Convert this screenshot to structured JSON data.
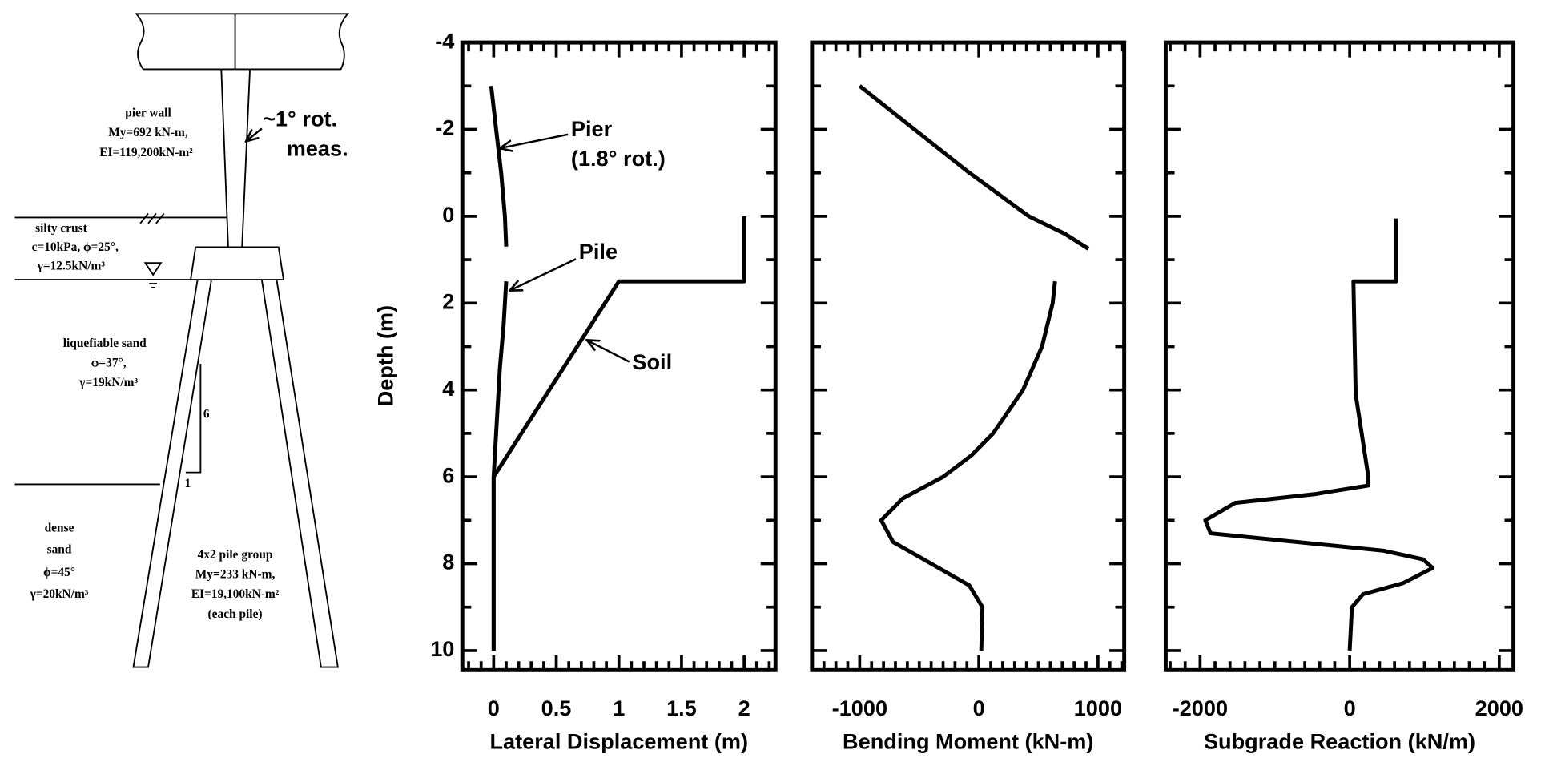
{
  "diagram": {
    "pier_wall": [
      "pier wall",
      "My=692 kN-m,",
      "EI=119,200kN-m²"
    ],
    "rotation_note": [
      "~1° rot.",
      "meas."
    ],
    "silty_crust": [
      "silty crust",
      "c=10kPa, ϕ=25°,",
      "γ=12.5kN/m³"
    ],
    "liquefiable_sand": [
      "liquefiable sand",
      "ϕ=37°,",
      "γ=19kN/m³"
    ],
    "slope": [
      "6",
      "1"
    ],
    "dense_sand": [
      "dense",
      "sand",
      "ϕ=45°",
      "γ=20kN/m³"
    ],
    "pile_group": [
      "4x2 pile group",
      "My=233 kN-m,",
      "EI=19,100kN-m²",
      "(each pile)"
    ]
  },
  "chart_data": [
    {
      "type": "line",
      "xlabel": "Lateral Displacement (m)",
      "ylabel": "Depth (m)",
      "ytick_labels": true,
      "y_inverted": true,
      "xlim": [
        -0.25,
        2.25
      ],
      "xticks": [
        0,
        0.5,
        1,
        1.5,
        2
      ],
      "xminor": [
        -0.2,
        -0.1,
        0.1,
        0.2,
        0.3,
        0.4,
        0.6,
        0.7,
        0.8,
        0.9,
        1.1,
        1.2,
        1.3,
        1.4,
        1.6,
        1.7,
        1.8,
        1.9,
        2.1,
        2.2
      ],
      "ylim": [
        -4,
        10.45
      ],
      "yticks": [
        -4,
        -2,
        0,
        2,
        4,
        6,
        8,
        10
      ],
      "yminor": [
        -3,
        -1,
        1,
        3,
        5,
        7,
        9
      ],
      "series": [
        {
          "name": "Pier",
          "note": "(1.8° rot.)",
          "color": "#000000",
          "depth": [
            -3,
            -2,
            -1,
            0,
            0.7
          ],
          "values": [
            -0.02,
            0.02,
            0.06,
            0.09,
            0.1
          ]
        },
        {
          "name": "Pile",
          "color": "#000000",
          "depth": [
            1.5,
            2.5,
            3.5,
            5,
            6,
            8,
            10
          ],
          "values": [
            0.1,
            0.08,
            0.05,
            0.02,
            0,
            0,
            0
          ]
        },
        {
          "name": "Soil",
          "color": "#000000",
          "depth": [
            0,
            1.5,
            1.5,
            6,
            10
          ],
          "values": [
            2,
            2,
            1,
            0,
            0
          ]
        }
      ]
    },
    {
      "type": "line",
      "xlabel": "Bending Moment (kN-m)",
      "ytick_labels": false,
      "y_inverted": true,
      "xlim": [
        -1400,
        1220
      ],
      "xticks": [
        -1000,
        0,
        1000
      ],
      "xminor": [
        -1300,
        -1200,
        -1100,
        -900,
        -800,
        -700,
        -600,
        -500,
        -400,
        -300,
        -200,
        -100,
        100,
        200,
        300,
        400,
        500,
        600,
        700,
        800,
        900,
        1100,
        1200
      ],
      "ylim": [
        -4,
        10.45
      ],
      "yticks": [
        -4,
        -2,
        0,
        2,
        4,
        6,
        8,
        10
      ],
      "yminor": [
        -3,
        -1,
        1,
        3,
        5,
        7,
        9
      ],
      "series": [
        {
          "color": "#000000",
          "depth": [
            -3,
            -2,
            -1,
            0,
            0.4,
            0.75
          ],
          "values": [
            -1000,
            -540,
            -80,
            420,
            720,
            920
          ]
        },
        {
          "color": "#000000",
          "depth": [
            1.5,
            2,
            3,
            4,
            5,
            5.5,
            6,
            6.5,
            7,
            7.5,
            8,
            8.5,
            9,
            10
          ],
          "values": [
            640,
            620,
            530,
            370,
            120,
            -60,
            -300,
            -640,
            -820,
            -720,
            -400,
            -80,
            30,
            20
          ]
        }
      ]
    },
    {
      "type": "line",
      "xlabel": "Subgrade Reaction (kN/m)",
      "ytick_labels": false,
      "y_inverted": true,
      "xlim": [
        -2460,
        2190
      ],
      "xticks": [
        -2000,
        0,
        2000
      ],
      "xminor": [
        -2400,
        -2200,
        -1800,
        -1600,
        -1400,
        -1200,
        -1000,
        -800,
        -600,
        -400,
        -200,
        200,
        400,
        600,
        800,
        1000,
        1200,
        1400,
        1600,
        1800
      ],
      "ylim": [
        -4,
        10.45
      ],
      "yticks": [
        -4,
        -2,
        0,
        2,
        4,
        6,
        8,
        10
      ],
      "yminor": [
        -3,
        -1,
        1,
        3,
        5,
        7,
        9
      ],
      "series": [
        {
          "color": "#000000",
          "depth": [
            0.05,
            1.5,
            1.5,
            4.1,
            6,
            6.2,
            6.4,
            6.6,
            7,
            7.3,
            7.7,
            7.9,
            8.1,
            8.45,
            8.7,
            9,
            10
          ],
          "values": [
            620,
            620,
            50,
            80,
            250,
            250,
            -470,
            -1530,
            -1930,
            -1860,
            450,
            980,
            1110,
            710,
            180,
            30,
            0
          ]
        }
      ]
    }
  ]
}
